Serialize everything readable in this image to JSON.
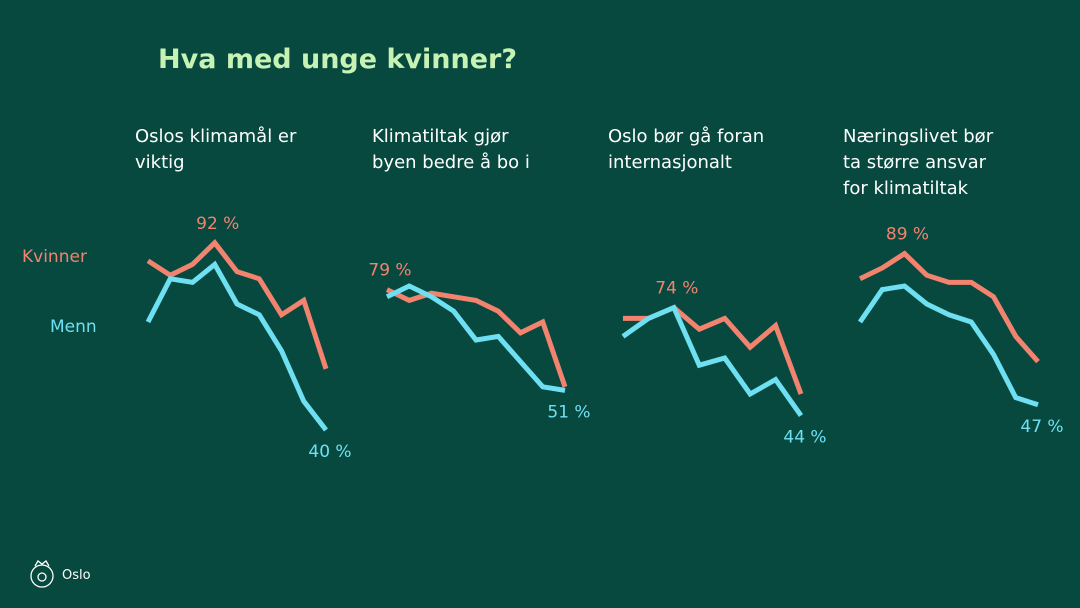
{
  "title": "Hva med unge kvinner?",
  "footer": "Oslo",
  "chart_data": [
    {
      "type": "line",
      "title": "Oslos klimamål er\nviktig",
      "categories": [
        null,
        null,
        null,
        null,
        null,
        null,
        null,
        null,
        null
      ],
      "ylim": [
        30,
        100
      ],
      "series": [
        {
          "name": "Kvinner",
          "color": "#f2836f",
          "values": [
            87,
            83,
            86,
            92,
            84,
            82,
            72,
            76,
            57
          ],
          "value_labels": [
            null,
            null,
            null,
            "92 %",
            null,
            null,
            null,
            null,
            null
          ]
        },
        {
          "name": "Menn",
          "color": "#6ee0f2",
          "values": [
            70,
            82,
            81,
            86,
            75,
            72,
            62,
            48,
            40
          ],
          "value_labels": [
            null,
            null,
            null,
            null,
            null,
            null,
            null,
            null,
            "40 %"
          ]
        }
      ]
    },
    {
      "type": "line",
      "title": "Klimatiltak gjør\nbyen bedre å bo i",
      "categories": [
        null,
        null,
        null,
        null,
        null,
        null,
        null,
        null,
        null
      ],
      "ylim": [
        30,
        100
      ],
      "series": [
        {
          "name": "Kvinner",
          "color": "#f2836f",
          "values": [
            79,
            76,
            78,
            77,
            76,
            73,
            67,
            70,
            52
          ],
          "value_labels": [
            "79 %",
            null,
            null,
            null,
            null,
            null,
            null,
            null,
            null
          ]
        },
        {
          "name": "Menn",
          "color": "#6ee0f2",
          "values": [
            77,
            80,
            77,
            73,
            65,
            66,
            59,
            52,
            51
          ],
          "value_labels": [
            null,
            null,
            null,
            null,
            null,
            null,
            null,
            null,
            "51 %"
          ]
        }
      ]
    },
    {
      "type": "line",
      "title": "Oslo bør gå foran\ninternasjonalt",
      "categories": [
        null,
        null,
        null,
        null,
        null,
        null,
        null,
        null
      ],
      "ylim": [
        30,
        100
      ],
      "series": [
        {
          "name": "Kvinner",
          "color": "#f2836f",
          "values": [
            71,
            71,
            74,
            68,
            71,
            63,
            69,
            50
          ],
          "value_labels": [
            null,
            null,
            "74 %",
            null,
            null,
            null,
            null,
            null
          ]
        },
        {
          "name": "Menn",
          "color": "#6ee0f2",
          "values": [
            66,
            71,
            74,
            58,
            60,
            50,
            54,
            44
          ],
          "value_labels": [
            null,
            null,
            null,
            null,
            null,
            null,
            null,
            "44 %"
          ]
        }
      ]
    },
    {
      "type": "line",
      "title": "Næringslivet bør\nta større ansvar\nfor klimatiltak",
      "categories": [
        null,
        null,
        null,
        null,
        null,
        null,
        null,
        null,
        null
      ],
      "ylim": [
        30,
        100
      ],
      "series": [
        {
          "name": "Kvinner",
          "color": "#f2836f",
          "values": [
            82,
            85,
            89,
            83,
            81,
            81,
            77,
            66,
            59
          ],
          "value_labels": [
            null,
            null,
            "89 %",
            null,
            null,
            null,
            null,
            null,
            null
          ]
        },
        {
          "name": "Menn",
          "color": "#6ee0f2",
          "values": [
            70,
            79,
            80,
            75,
            72,
            70,
            61,
            49,
            47
          ],
          "value_labels": [
            null,
            null,
            null,
            null,
            null,
            null,
            null,
            null,
            "47 %"
          ]
        }
      ]
    }
  ]
}
